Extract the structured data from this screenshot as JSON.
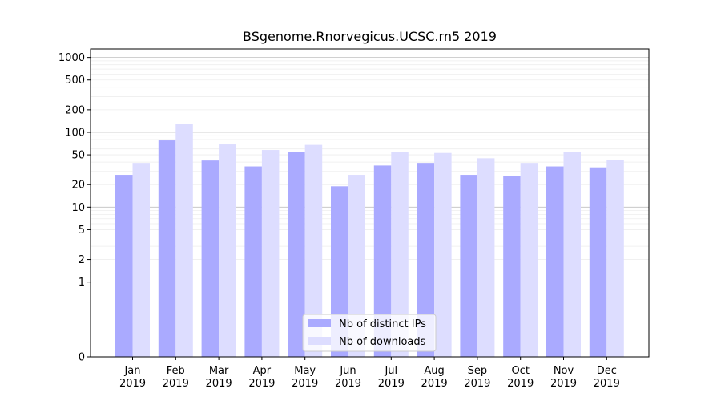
{
  "chart_data": {
    "type": "bar",
    "title": "BSgenome.Rnorvegicus.UCSC.rn5 2019",
    "xlabel": "",
    "ylabel": "",
    "yscale": "symlog",
    "ylim": [
      0,
      1300
    ],
    "yticks": [
      0,
      1,
      2,
      5,
      10,
      20,
      50,
      100,
      200,
      500,
      1000
    ],
    "categories": [
      "Jan\n2019",
      "Feb\n2019",
      "Mar\n2019",
      "Apr\n2019",
      "May\n2019",
      "Jun\n2019",
      "Jul\n2019",
      "Aug\n2019",
      "Sep\n2019",
      "Oct\n2019",
      "Nov\n2019",
      "Dec\n2019"
    ],
    "series": [
      {
        "name": "Nb of distinct IPs",
        "color": "#aaaaff",
        "values": [
          27,
          78,
          42,
          35,
          55,
          19,
          36,
          39,
          27,
          26,
          35,
          34
        ]
      },
      {
        "name": "Nb of downloads",
        "color": "#ddddff",
        "values": [
          39,
          128,
          69,
          58,
          68,
          27,
          54,
          53,
          45,
          39,
          54,
          43
        ]
      }
    ],
    "legend_position": "bottom-center",
    "grid": true
  }
}
